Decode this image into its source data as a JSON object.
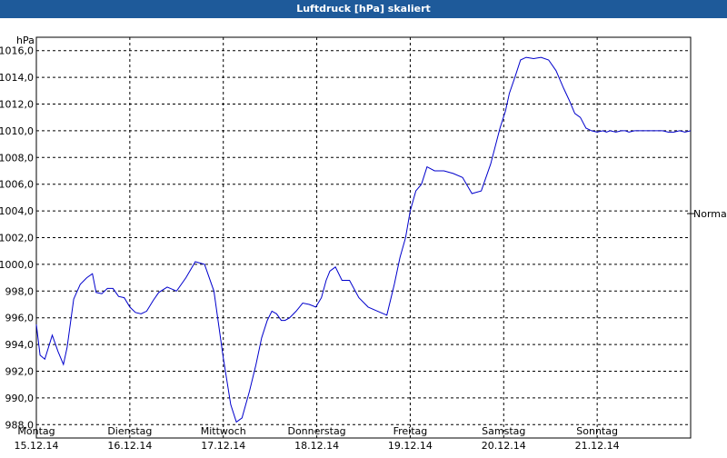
{
  "header": {
    "title": "Luftdruck [hPa] skaliert"
  },
  "chart_data": {
    "type": "line",
    "ylabel": "hPa",
    "ylim": [
      987,
      1017
    ],
    "yticks": [
      "988,0",
      "990,0",
      "992,0",
      "994,0",
      "996,0",
      "998,0",
      "1000,0",
      "1002,0",
      "1004,0",
      "1006,0",
      "1008,0",
      "1010,0",
      "1012,0",
      "1014,0",
      "1016,0"
    ],
    "ytick_values": [
      988,
      990,
      992,
      994,
      996,
      998,
      1000,
      1002,
      1004,
      1006,
      1008,
      1010,
      1012,
      1014,
      1016
    ],
    "grid": true,
    "x_range_days": [
      0,
      7
    ],
    "days": [
      {
        "day": "Montag",
        "date": "15.12.14"
      },
      {
        "day": "Dienstag",
        "date": "16.12.14"
      },
      {
        "day": "Mittwoch",
        "date": "17.12.14"
      },
      {
        "day": "Donnerstag",
        "date": "18.12.14"
      },
      {
        "day": "Freitag",
        "date": "19.12.14"
      },
      {
        "day": "Samstag",
        "date": "20.12.14"
      },
      {
        "day": "Sonntag",
        "date": "21.12.14"
      }
    ],
    "reference": {
      "label": "Normal",
      "value": 1003.8
    },
    "colors": {
      "series": "#0000cc",
      "grid": "#000000",
      "header": "#1e5a9a"
    },
    "series": [
      {
        "x": [
          0.0,
          0.04,
          0.09,
          0.17,
          0.23,
          0.29,
          0.33,
          0.4,
          0.47,
          0.54,
          0.6,
          0.64,
          0.7,
          0.76,
          0.82,
          0.88,
          0.94,
          1.0,
          1.06,
          1.12,
          1.18,
          1.25,
          1.31,
          1.4,
          1.5,
          1.6,
          1.7,
          1.8,
          1.9,
          2.0,
          2.08,
          2.14,
          2.2,
          2.28,
          2.35,
          2.41,
          2.47,
          2.52,
          2.57,
          2.62,
          2.66,
          2.71,
          2.78,
          2.85,
          2.92,
          2.99,
          3.05,
          3.1,
          3.14,
          3.2,
          3.27,
          3.35,
          3.45,
          3.55,
          3.65,
          3.75,
          3.83,
          3.89,
          3.95,
          4.0,
          4.06,
          4.12,
          4.18,
          4.26,
          4.36,
          4.46,
          4.56,
          4.66,
          4.76,
          4.86,
          4.96,
          5.02,
          5.06,
          5.12,
          5.18,
          5.24,
          5.32,
          5.4,
          5.48,
          5.56,
          5.64,
          5.7,
          5.76,
          5.82,
          5.88,
          5.94,
          6.0,
          6.06,
          6.1,
          6.14,
          6.2,
          6.26,
          6.3,
          6.34,
          6.4,
          6.46,
          6.5,
          6.56,
          6.62,
          6.7,
          6.76,
          6.82,
          6.88,
          6.94,
          7.0
        ],
        "y": [
          995.5,
          993.2,
          992.9,
          994.7,
          993.5,
          992.5,
          993.8,
          997.4,
          998.5,
          999.0,
          999.3,
          997.9,
          997.8,
          998.2,
          998.2,
          997.6,
          997.5,
          996.8,
          996.4,
          996.3,
          996.5,
          997.3,
          997.9,
          998.3,
          998.0,
          999.0,
          1000.2,
          1000.0,
          998.0,
          993.0,
          989.5,
          988.2,
          988.5,
          990.5,
          992.5,
          994.5,
          995.8,
          996.5,
          996.3,
          995.8,
          995.8,
          996.0,
          996.5,
          997.1,
          997.0,
          996.8,
          997.5,
          998.8,
          999.5,
          999.8,
          998.8,
          998.8,
          997.5,
          996.8,
          996.5,
          996.2,
          998.5,
          1000.5,
          1002.0,
          1004.0,
          1005.5,
          1006.0,
          1007.3,
          1007.0,
          1007.0,
          1006.8,
          1006.5,
          1005.3,
          1005.5,
          1007.5,
          1010.2,
          1011.5,
          1012.8,
          1014.0,
          1015.3,
          1015.5,
          1015.4,
          1015.5,
          1015.3,
          1014.5,
          1013.2,
          1012.3,
          1011.3,
          1011.0,
          1010.2,
          1010.0,
          1009.9,
          1010.0,
          1009.9,
          1010.0,
          1009.9,
          1010.0,
          1010.0,
          1009.9,
          1010.0,
          1010.0,
          1010.0,
          1010.0,
          1010.0,
          1010.0,
          1009.9,
          1009.9,
          1010.0,
          1009.9,
          1010.0
        ]
      }
    ]
  }
}
